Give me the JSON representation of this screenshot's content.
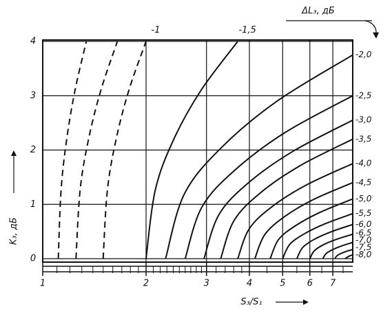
{
  "chart_data": {
    "type": "line",
    "legend_title": "ΔL₃, дБ",
    "x_label": "S₃/S₁",
    "y_label": "K₃, дБ",
    "xscale": "log",
    "xlim": [
      1,
      8
    ],
    "ylim": [
      0,
      4
    ],
    "xticks": [
      1,
      2,
      3,
      4,
      5,
      6,
      7
    ],
    "xminorticks": [
      1.1,
      1.2,
      1.3,
      1.4,
      1.5,
      1.6,
      1.7,
      1.8,
      1.9,
      2.1,
      2.2,
      2.3,
      2.4,
      2.5,
      2.6,
      2.7,
      2.8,
      2.9,
      3.2,
      3.4,
      3.6,
      3.8,
      4.5,
      5.5,
      6.5,
      7.5
    ],
    "yticks": [
      0,
      1,
      2,
      3,
      4
    ],
    "grid": true,
    "color": "#111111",
    "series": [
      {
        "style": "dashed",
        "x": [
          1.11,
          1.131,
          1.174,
          1.242,
          1.34
        ],
        "y": [
          0,
          1.26,
          2.19,
          3.1,
          4
        ]
      },
      {
        "style": "dashed",
        "x": [
          1.25,
          1.285,
          1.359,
          1.477,
          1.65
        ],
        "y": [
          0,
          1.26,
          2.19,
          3.1,
          4
        ]
      },
      {
        "name": "-1",
        "style": "dashed",
        "x": [
          1.5,
          1.543,
          1.635,
          1.782,
          2.0
        ],
        "y": [
          0,
          1.26,
          2.19,
          3.1,
          4
        ]
      },
      {
        "name": "-1,5",
        "style": "solid",
        "x": [
          2.0,
          2.127,
          2.405,
          2.892,
          3.7
        ],
        "y": [
          0,
          1.26,
          2.19,
          3.1,
          4
        ]
      },
      {
        "name": "-2,0",
        "style": "solid",
        "x": [
          2.28,
          2.585,
          3.322,
          4.841,
          8
        ],
        "y": [
          0,
          1.19,
          2.05,
          2.91,
          3.75
        ]
      },
      {
        "name": "-2,5",
        "style": "solid",
        "x": [
          2.6,
          2.909,
          3.643,
          5.104,
          8
        ],
        "y": [
          0,
          0.95,
          1.64,
          2.33,
          3.0
        ]
      },
      {
        "name": "-3,0",
        "style": "solid",
        "x": [
          2.95,
          3.26,
          3.98,
          5.369,
          8
        ],
        "y": [
          0,
          0.81,
          1.4,
          1.98,
          2.55
        ]
      },
      {
        "name": "-3,5",
        "style": "solid",
        "x": [
          3.3,
          3.607,
          4.303,
          5.613,
          8
        ],
        "y": [
          0,
          0.7,
          1.21,
          1.71,
          2.2
        ]
      },
      {
        "name": "-4,0",
        "style": "solid",
        "x": [
          3.7,
          3.996,
          4.662,
          5.876,
          8
        ],
        "y": [
          0,
          0.55,
          0.96,
          1.36,
          1.75
        ]
      },
      {
        "name": "-4,5",
        "style": "solid",
        "x": [
          4.15,
          4.432,
          5.055,
          6.15,
          8
        ],
        "y": [
          0,
          0.44,
          0.77,
          1.09,
          1.4
        ]
      },
      {
        "name": "-5,0",
        "style": "solid",
        "x": [
          4.6,
          4.862,
          5.428,
          6.408,
          8
        ],
        "y": [
          0,
          0.35,
          0.6,
          0.85,
          1.1
        ]
      },
      {
        "name": "-5,5",
        "style": "solid",
        "x": [
          5.0,
          5.24,
          5.755,
          6.63,
          8
        ],
        "y": [
          0,
          0.26,
          0.45,
          0.64,
          0.83
        ]
      },
      {
        "name": "-6,0",
        "style": "solid",
        "x": [
          5.5,
          5.709,
          6.155,
          6.886,
          8
        ],
        "y": [
          0,
          0.2,
          0.35,
          0.49,
          0.63
        ]
      },
      {
        "name": "-6,5",
        "style": "solid",
        "x": [
          6.0,
          6.174,
          6.54,
          7.128,
          8
        ],
        "y": [
          0,
          0.14,
          0.25,
          0.35,
          0.45
        ]
      },
      {
        "name": "-7,0",
        "style": "solid",
        "x": [
          6.55,
          6.681,
          6.956,
          7.388,
          8
        ],
        "y": [
          0,
          0.09,
          0.16,
          0.23,
          0.3
        ]
      },
      {
        "name": "-7,5",
        "style": "solid",
        "x": [
          7.1,
          7.185,
          7.359,
          7.628,
          8
        ],
        "y": [
          0,
          0.05,
          0.09,
          0.13,
          0.17
        ]
      },
      {
        "name": "-8,0",
        "style": "solid",
        "x": [
          7.6,
          7.8,
          8
        ],
        "y": [
          0,
          0.045,
          0.07
        ]
      }
    ]
  }
}
